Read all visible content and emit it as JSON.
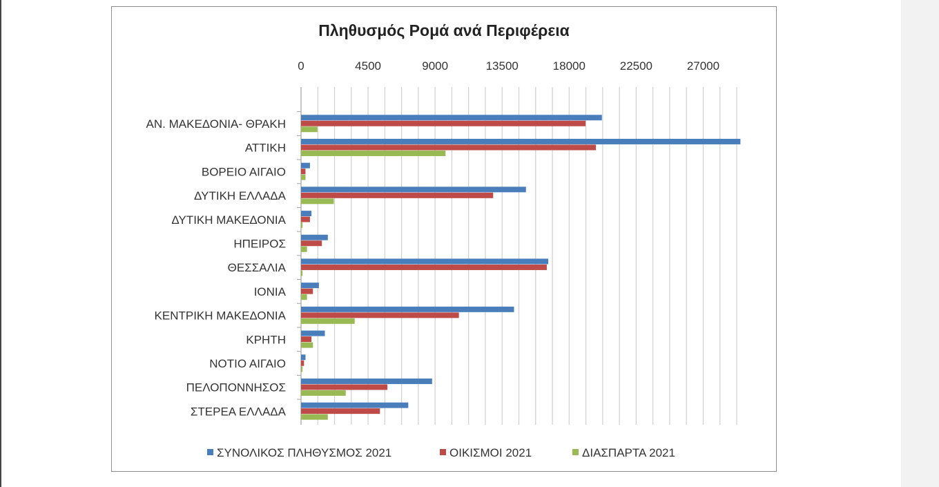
{
  "chart_data": {
    "type": "bar",
    "orientation": "horizontal",
    "title": "Πληθυσμός Ρομά ανά Περιφέρεια",
    "xlim": [
      0,
      29250
    ],
    "ticks": [
      0,
      4500,
      9000,
      13500,
      18000,
      22500,
      27000
    ],
    "tick_labels": [
      "0",
      "4500",
      "9000",
      "13500",
      "18000",
      "22500",
      "27000"
    ],
    "grid": true,
    "legend_position": "bottom",
    "categories": [
      "ΑΝ. ΜΑΚΕΔΟΝΙΑ- ΘΡΑΚΗ",
      "ΑΤΤΙΚΗ",
      "ΒΟΡΕΙΟ ΑΙΓΑΙΟ",
      "ΔΥΤΙΚΗ ΕΛΛΑΔΑ",
      "ΔΥΤΙΚΗ ΜΑΚΕΔΟΝΙΑ",
      "ΗΠΕΙΡΟΣ",
      "ΘΕΣΣΑΛΙΑ",
      "ΙΟΝΙΑ",
      "ΚΕΝΤΡΙΚΗ ΜΑΚΕΔΟΝΙΑ",
      "ΚΡΗΤΗ",
      "ΝΟΤΙΟ ΑΙΓΑΙΟ",
      "ΠΕΛΟΠΟΝΝΗΣΟΣ",
      "ΣΤΕΡΕΑ ΕΛΛΑΔΑ"
    ],
    "series": [
      {
        "name": "ΣΥΝΟΛΙΚΟΣ ΠΛΗΘΥΣΜΟΣ 2021",
        "color": "#4a7ebb",
        "values": [
          20200,
          29500,
          600,
          15100,
          700,
          1800,
          16600,
          1200,
          14300,
          1600,
          300,
          8800,
          7200
        ]
      },
      {
        "name": "ΟΙΚΙΣΜΟΙ 2021",
        "color": "#be4b48",
        "values": [
          19100,
          19800,
          300,
          12900,
          600,
          1400,
          16500,
          800,
          10600,
          700,
          200,
          5800,
          5300
        ]
      },
      {
        "name": "ΔΙΑΣΠΑΡΤΑ 2021",
        "color": "#98b954",
        "values": [
          1100,
          9700,
          300,
          2200,
          100,
          400,
          100,
          400,
          3600,
          800,
          100,
          3000,
          1800
        ]
      }
    ]
  }
}
